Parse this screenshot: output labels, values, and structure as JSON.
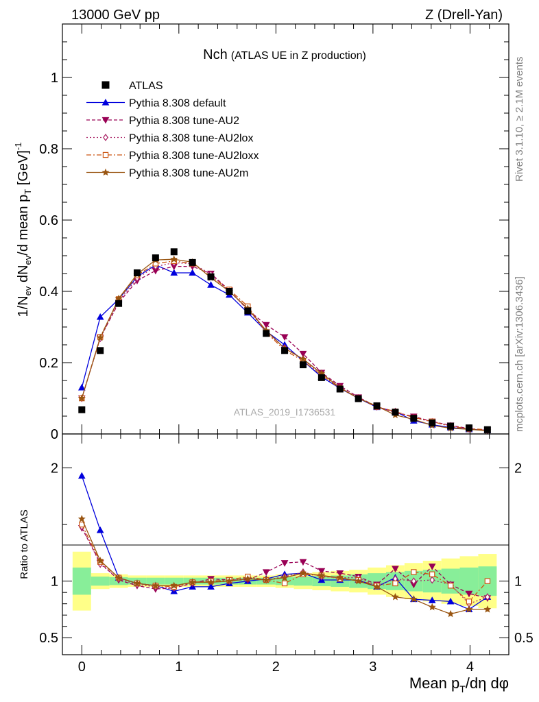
{
  "header": {
    "left": "13000 GeV pp",
    "right": "Z (Drell-Yan)"
  },
  "title": {
    "main": "Nch",
    "sub": "(ATLAS UE in Z production)"
  },
  "side_text": {
    "rivet": "Rivet 3.1.10, ≥ 2.1M events",
    "site": "mcplots.cern.ch [arXiv:1306.3436]"
  },
  "watermark": "ATLAS_2019_I1736531",
  "chart_data": {
    "type": "line",
    "xlabel": "Mean p_T/dη dφ",
    "ylabel": "1/N_ev dN_ev/d mean p_T [GeV]^-1",
    "ratio_ylabel": "Ratio to ATLAS",
    "xlim": [
      -0.2,
      4.4
    ],
    "ylim": [
      0,
      1.15
    ],
    "ratio_ylim": [
      0.35,
      2.3
    ],
    "xticks": [
      0,
      1,
      2,
      3,
      4
    ],
    "xtick_labels": [
      "0",
      "1",
      "2",
      "3",
      "4"
    ],
    "yticks": [
      0,
      0.2,
      0.4,
      0.6,
      0.8,
      1
    ],
    "ytick_labels": [
      "0",
      "0.2",
      "0.4",
      "0.6",
      "0.8",
      "1"
    ],
    "ratio_yticks": [
      0.5,
      1,
      2
    ],
    "ratio_ytick_labels": [
      "0.5",
      "1",
      "2"
    ],
    "x": [
      0,
      0.19,
      0.38,
      0.57,
      0.76,
      0.95,
      1.14,
      1.33,
      1.52,
      1.71,
      1.9,
      2.09,
      2.28,
      2.47,
      2.66,
      2.85,
      3.04,
      3.23,
      3.42,
      3.61,
      3.8,
      3.99,
      4.18
    ],
    "data": {
      "name": "ATLAS",
      "values": [
        0.068,
        0.234,
        0.366,
        0.452,
        0.494,
        0.511,
        0.481,
        0.441,
        0.4,
        0.345,
        0.282,
        0.234,
        0.194,
        0.158,
        0.126,
        0.099,
        0.079,
        0.061,
        0.044,
        0.031,
        0.022,
        0.017,
        0.012
      ],
      "band_inner": [
        0.12,
        0.04,
        0.035,
        0.03,
        0.03,
        0.03,
        0.03,
        0.03,
        0.03,
        0.03,
        0.03,
        0.035,
        0.04,
        0.045,
        0.05,
        0.06,
        0.07,
        0.08,
        0.09,
        0.1,
        0.11,
        0.12,
        0.13
      ],
      "band_outer": [
        0.26,
        0.07,
        0.06,
        0.05,
        0.05,
        0.05,
        0.05,
        0.05,
        0.05,
        0.05,
        0.05,
        0.06,
        0.07,
        0.08,
        0.09,
        0.1,
        0.12,
        0.14,
        0.16,
        0.18,
        0.2,
        0.22,
        0.24
      ]
    },
    "series": [
      {
        "name": "Pythia 8.308 default",
        "color": "#0000dd",
        "dash": "",
        "marker": "triangle",
        "values": [
          0.13,
          0.328,
          0.378,
          0.441,
          0.474,
          0.452,
          0.452,
          0.418,
          0.39,
          0.34,
          0.288,
          0.25,
          0.205,
          0.16,
          0.128,
          0.1,
          0.075,
          0.063,
          0.037,
          0.026,
          0.018,
          0.013,
          0.01
        ],
        "ratio": [
          1.93,
          1.45,
          1.03,
          0.98,
          0.96,
          0.91,
          0.95,
          0.95,
          0.98,
          1.0,
          1.02,
          1.06,
          1.07,
          1.01,
          1.01,
          1.01,
          0.95,
          1.03,
          0.84,
          0.83,
          0.82,
          0.75,
          0.86
        ]
      },
      {
        "name": "Pythia 8.308 tune-AU2",
        "color": "#990055",
        "dash": "5,3",
        "marker": "tri-down",
        "values": [
          0.1,
          0.27,
          0.368,
          0.43,
          0.458,
          0.47,
          0.47,
          0.45,
          0.403,
          0.348,
          0.306,
          0.272,
          0.225,
          0.172,
          0.135,
          0.103,
          0.077,
          0.06,
          0.049,
          0.035,
          0.024,
          0.015,
          0.01
        ],
        "ratio": [
          1.47,
          1.16,
          1.01,
          0.96,
          0.93,
          0.94,
          0.98,
          1.02,
          1.01,
          1.01,
          1.08,
          1.16,
          1.17,
          1.09,
          1.07,
          1.04,
          0.97,
          1.11,
          0.97,
          1.13,
          0.97,
          0.89,
          0.85
        ]
      },
      {
        "name": "Pythia 8.308 tune-AU2lox",
        "color": "#aa2266",
        "dash": "2,3",
        "marker": "diamond",
        "values": [
          0.1,
          0.268,
          0.372,
          0.437,
          0.47,
          0.48,
          0.478,
          0.448,
          0.4,
          0.35,
          0.285,
          0.242,
          0.21,
          0.165,
          0.13,
          0.101,
          0.076,
          0.063,
          0.046,
          0.034,
          0.023,
          0.014,
          0.01
        ],
        "ratio": [
          1.48,
          1.15,
          1.02,
          0.97,
          0.95,
          0.94,
          0.99,
          1.0,
          1.0,
          1.03,
          1.01,
          1.04,
          1.08,
          1.04,
          1.03,
          1.03,
          0.96,
          1.02,
          1.0,
          1.01,
          0.97,
          0.8,
          0.86
        ]
      },
      {
        "name": "Pythia 8.308 tune-AU2loxx",
        "color": "#cc5511",
        "dash": "7,3,2,3",
        "marker": "square-open",
        "values": [
          0.1,
          0.272,
          0.378,
          0.445,
          0.478,
          0.485,
          0.478,
          0.442,
          0.405,
          0.358,
          0.285,
          0.235,
          0.205,
          0.165,
          0.128,
          0.1,
          0.076,
          0.063,
          0.046,
          0.035,
          0.021,
          0.015,
          0.012
        ],
        "ratio": [
          1.5,
          1.17,
          1.03,
          0.98,
          0.96,
          0.95,
          0.99,
          1.0,
          1.01,
          1.04,
          1.01,
          0.98,
          1.06,
          1.05,
          1.02,
          1.01,
          0.96,
          0.98,
          1.08,
          1.06,
          0.96,
          0.82,
          1.0
        ]
      },
      {
        "name": "Pythia 8.308 tune-AU2m",
        "color": "#995511",
        "dash": "",
        "marker": "star",
        "values": [
          0.1,
          0.27,
          0.38,
          0.448,
          0.488,
          0.49,
          0.482,
          0.438,
          0.4,
          0.352,
          0.29,
          0.24,
          0.21,
          0.17,
          0.13,
          0.1,
          0.078,
          0.053,
          0.041,
          0.024,
          0.016,
          0.013,
          0.009
        ],
        "ratio": [
          1.55,
          1.18,
          1.03,
          0.98,
          0.96,
          0.96,
          0.99,
          0.99,
          1.0,
          1.02,
          1.01,
          1.03,
          1.07,
          1.05,
          1.03,
          1.0,
          0.95,
          0.86,
          0.84,
          0.77,
          0.71,
          0.75,
          0.75
        ]
      }
    ]
  }
}
